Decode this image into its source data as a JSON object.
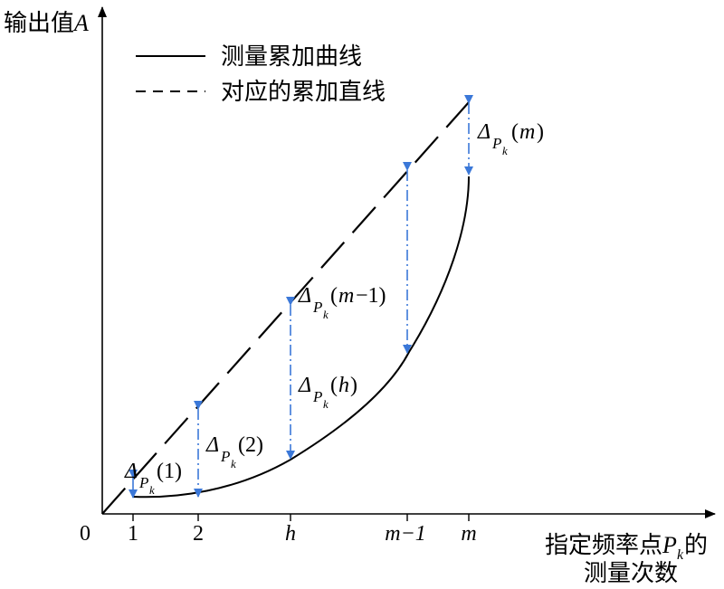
{
  "y_axis_label": {
    "text": "输出值",
    "var": "A"
  },
  "x_axis_label": {
    "line1": "指定频率点",
    "var": "P",
    "sub": "k",
    "suffix": "的",
    "line2": "测量次数"
  },
  "origin_label": "0",
  "x_ticks": [
    "1",
    "2",
    "h",
    "m−1",
    "m"
  ],
  "legend": {
    "measured": "测量累加曲线",
    "straight": "对应的累加直线"
  },
  "deltas": {
    "symbol": "Δ",
    "var": "P",
    "sub": "k",
    "arg_1": "(1)",
    "arg_2": "(2)",
    "arg_h_open": "(",
    "arg_h_var": "h",
    "arg_h_close": ")",
    "arg_m1_open": "(",
    "arg_m1_var": "m",
    "arg_m1_rest": "−1)",
    "arg_m_open": "(",
    "arg_m_var": "m",
    "arg_m_close": ")"
  },
  "colors": {
    "axis": "#000000",
    "curve": "#000000",
    "delta_arrow": "#3b78d8"
  }
}
